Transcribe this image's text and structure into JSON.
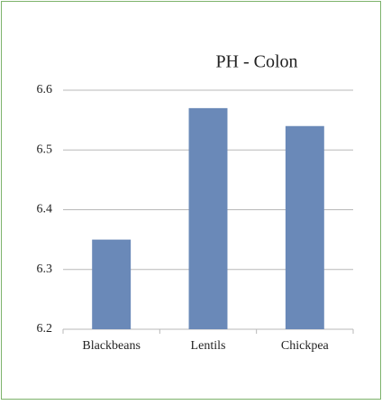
{
  "chart_data": {
    "type": "bar",
    "title": "PH - Colon",
    "categories": [
      "Blackbeans",
      "Lentils",
      "Chickpea"
    ],
    "values": [
      6.35,
      6.57,
      6.54
    ],
    "color": "#6a89b8",
    "ylim": [
      6.2,
      6.6
    ],
    "yticks": [
      6.2,
      6.3,
      6.4,
      6.5,
      6.6
    ],
    "grid": true
  }
}
